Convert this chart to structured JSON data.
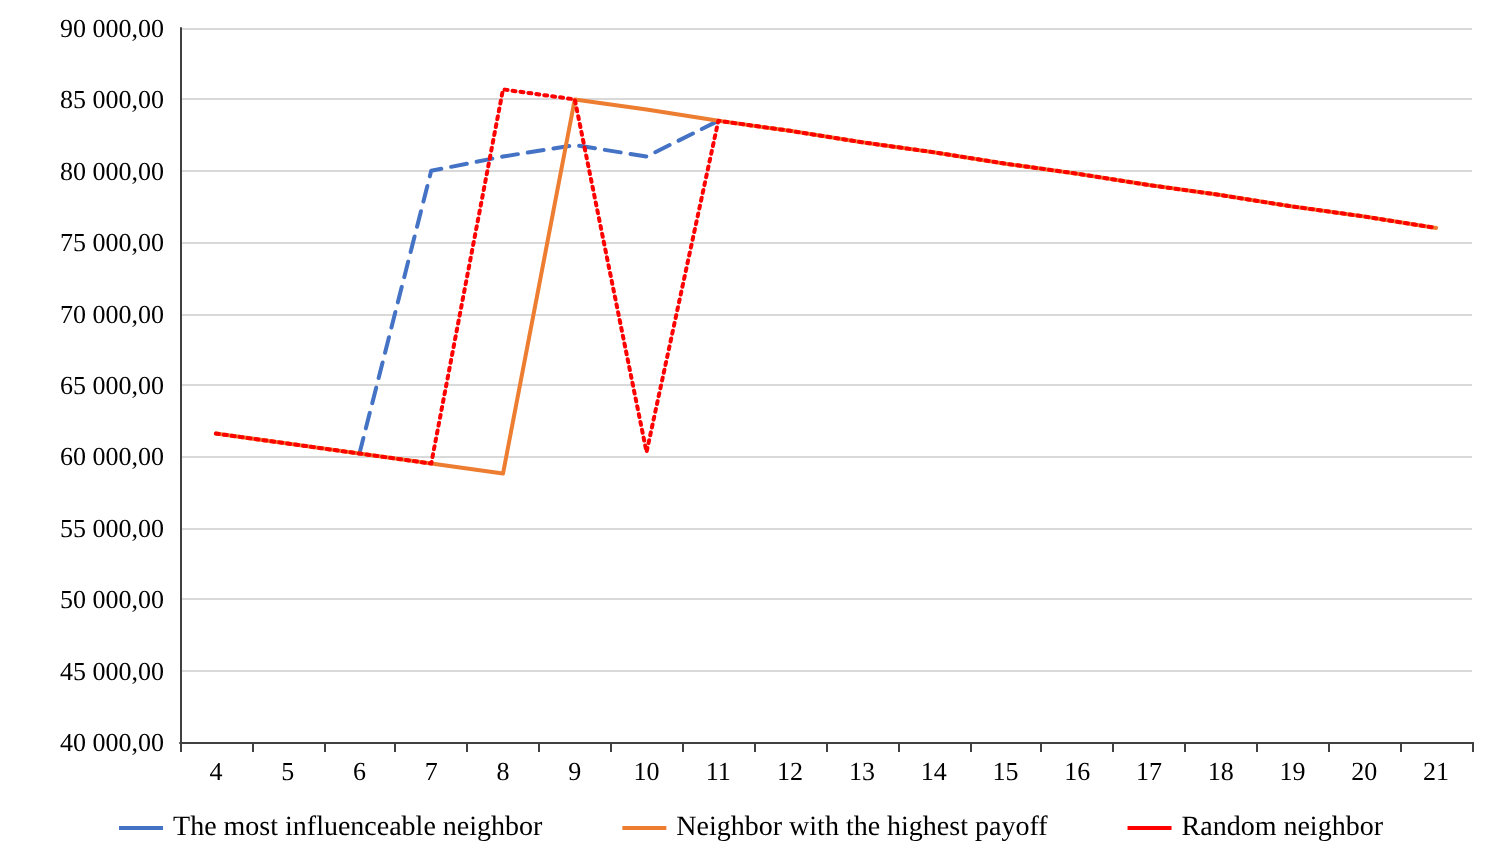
{
  "chart_data": {
    "type": "line",
    "categories": [
      "4",
      "5",
      "6",
      "7",
      "8",
      "9",
      "10",
      "11",
      "12",
      "13",
      "14",
      "15",
      "16",
      "17",
      "18",
      "19",
      "20",
      "21"
    ],
    "series": [
      {
        "name": "The most influenceable neighbor",
        "color": "#4472c4",
        "line_style": "dashed",
        "values": [
          null,
          null,
          60200,
          80000,
          81000,
          81800,
          81000,
          83500,
          null,
          null,
          null,
          null,
          null,
          null,
          null,
          null,
          null,
          null
        ]
      },
      {
        "name": "Neighbor with the highest payoff",
        "color": "#ed7d31",
        "line_style": "solid",
        "values": [
          61600,
          60900,
          60200,
          59500,
          58800,
          85000,
          84300,
          83500,
          82800,
          82000,
          81300,
          80500,
          79800,
          79000,
          78300,
          77500,
          76800,
          76000
        ]
      },
      {
        "name": "Random neighbor",
        "color": "#ff0000",
        "line_style": "dotted",
        "values": [
          61600,
          60900,
          60200,
          59500,
          85700,
          85000,
          60300,
          83500,
          82800,
          82000,
          81300,
          80500,
          79800,
          79000,
          78300,
          77500,
          76800,
          76000
        ]
      }
    ],
    "ylim": [
      40000,
      90000
    ],
    "yticks": [
      {
        "value": 40000,
        "label": "40 000,00"
      },
      {
        "value": 45000,
        "label": "45 000,00"
      },
      {
        "value": 50000,
        "label": "50 000,00"
      },
      {
        "value": 55000,
        "label": "55 000,00"
      },
      {
        "value": 60000,
        "label": "60 000,00"
      },
      {
        "value": 65000,
        "label": "65 000,00"
      },
      {
        "value": 70000,
        "label": "70 000,00"
      },
      {
        "value": 75000,
        "label": "75 000,00"
      },
      {
        "value": 80000,
        "label": "80 000,00"
      },
      {
        "value": 85000,
        "label": "85 000,00"
      },
      {
        "value": 90000,
        "label": "90 000,00"
      }
    ],
    "grid": "y",
    "legend": "bottom",
    "marker": "none"
  }
}
